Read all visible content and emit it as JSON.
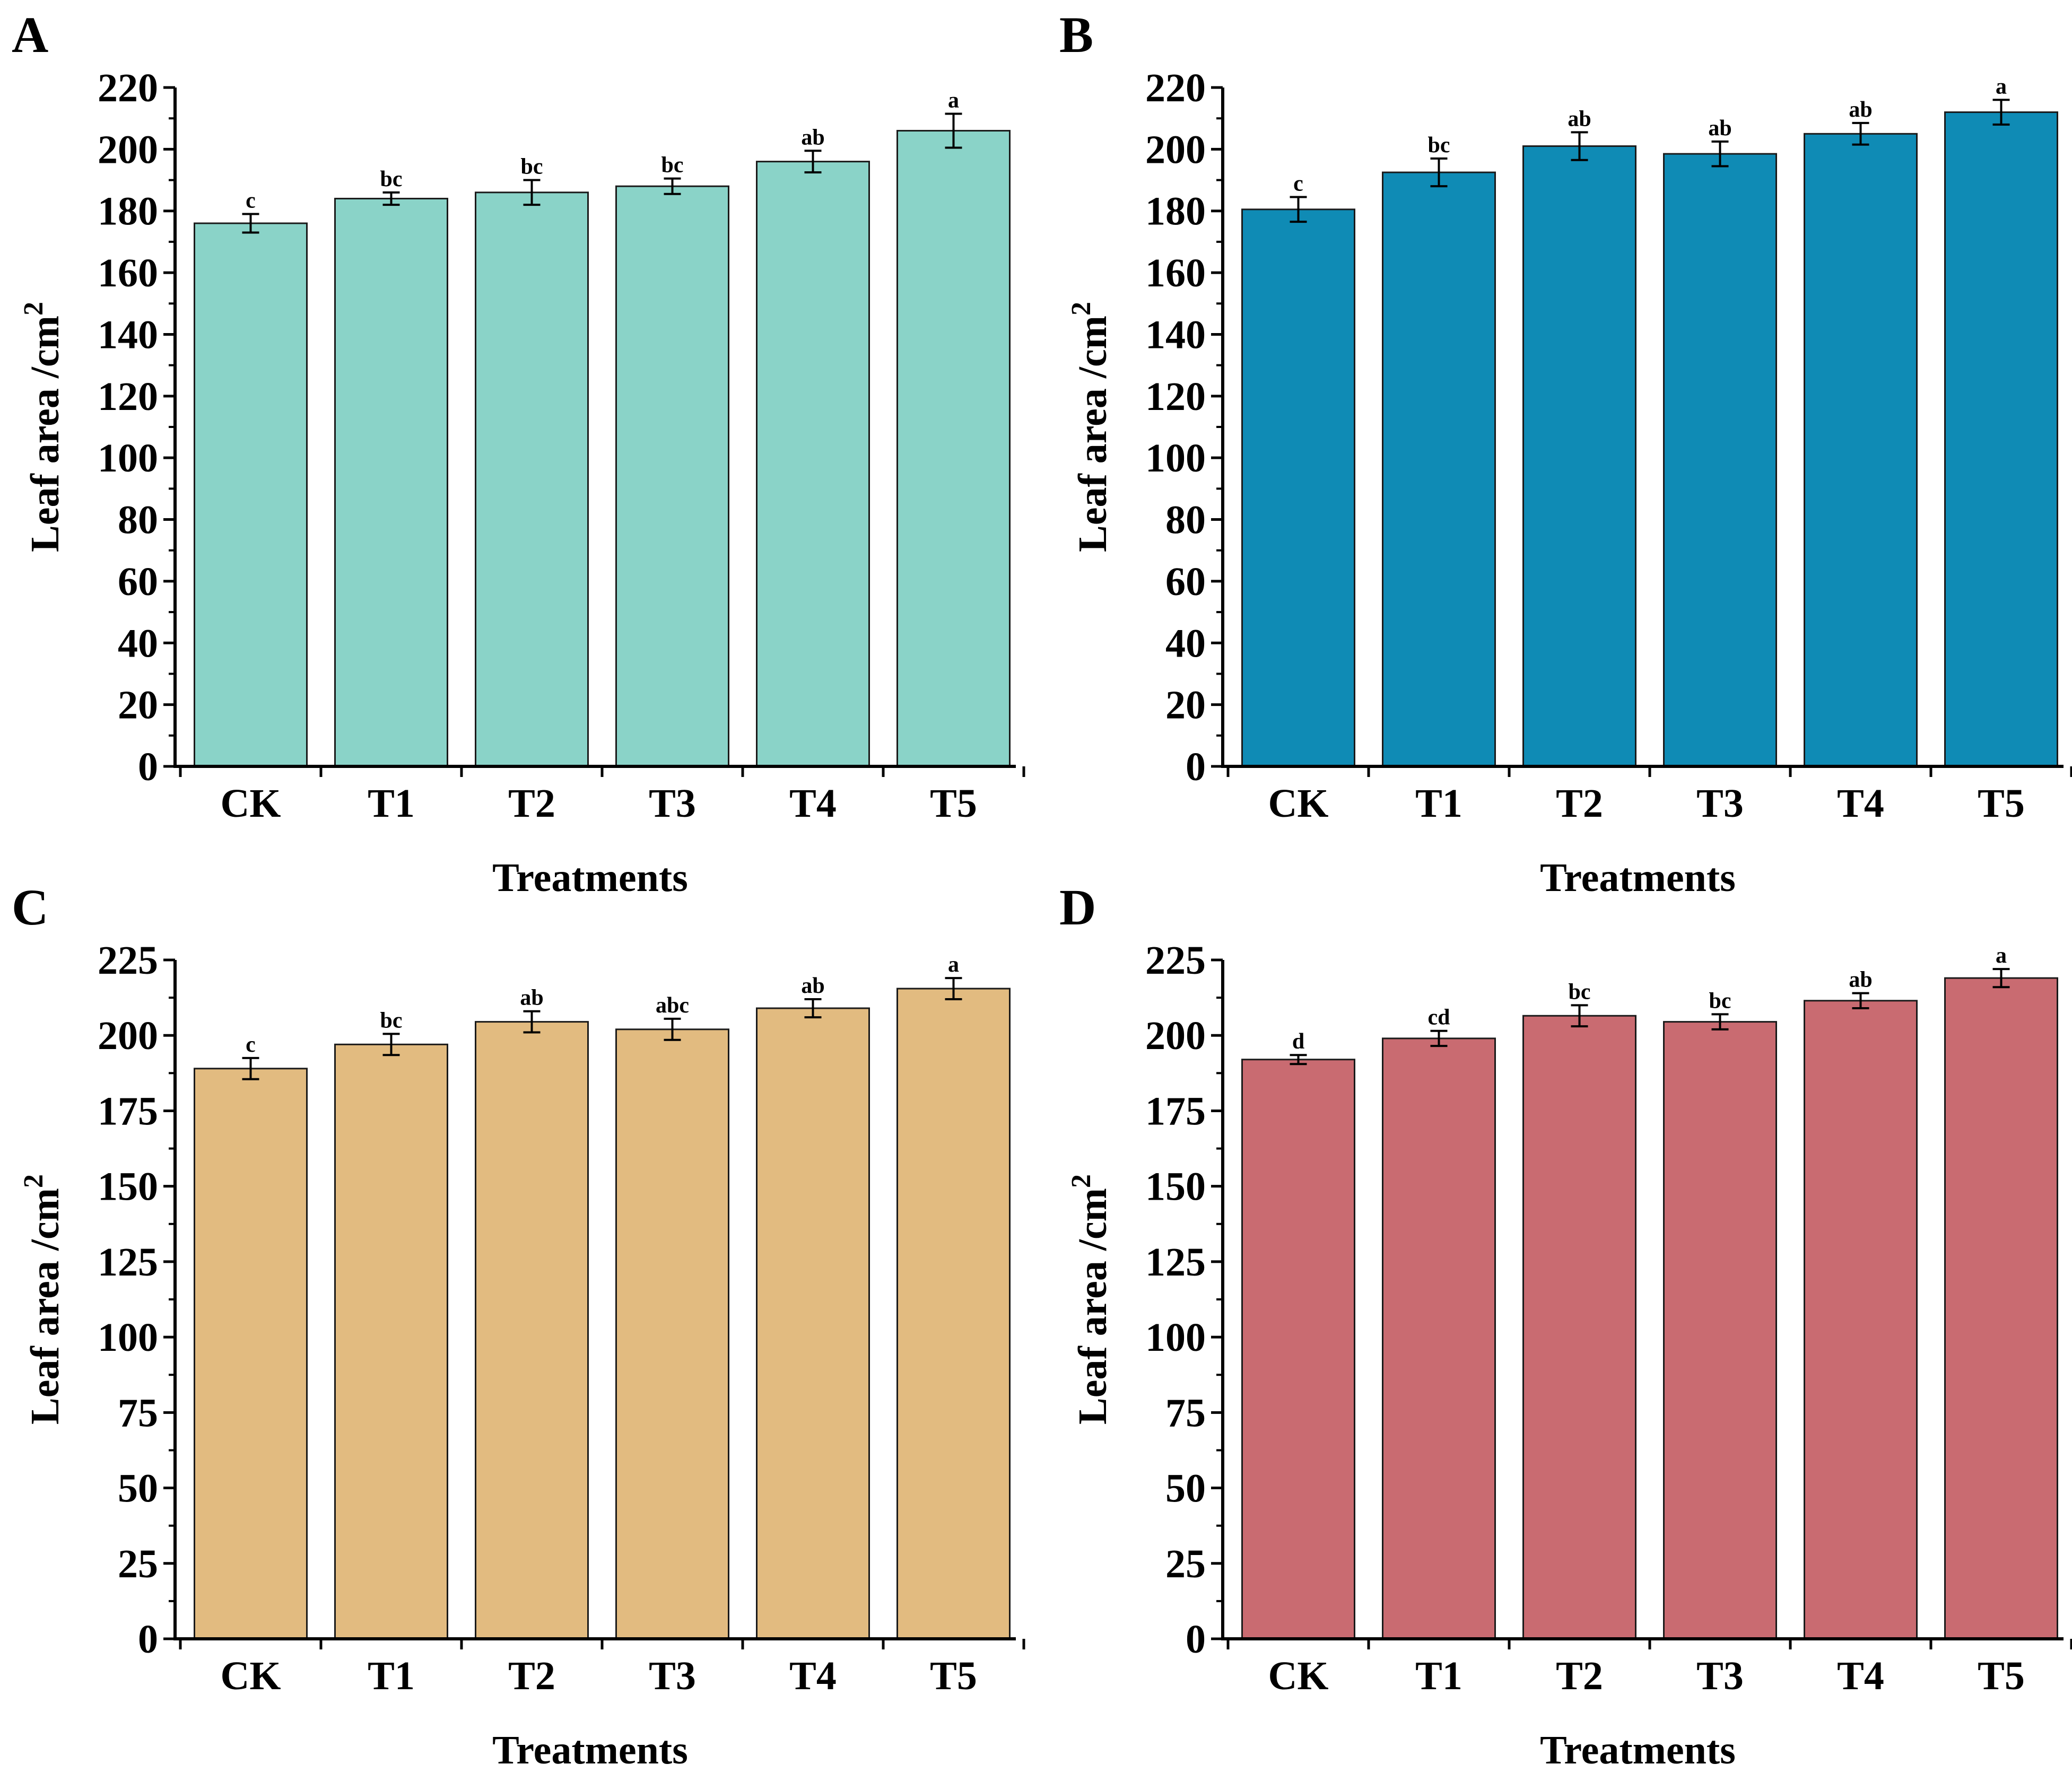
{
  "chart_data": [
    {
      "type": "bar",
      "panel": "A",
      "color": "#8ad3c8",
      "categories": [
        "CK",
        "T1",
        "T2",
        "T3",
        "T4",
        "T5"
      ],
      "values": [
        176,
        184,
        186,
        188,
        196,
        206
      ],
      "errors": [
        3,
        2,
        4,
        2.5,
        3.5,
        5.5
      ],
      "significance": [
        "c",
        "bc",
        "bc",
        "bc",
        "ab",
        "a"
      ],
      "xlabel": "Treatments",
      "ylabel": "Leaf area /cm",
      "ylabel_superscript": "2",
      "ylim": [
        0,
        220
      ],
      "yticks": [
        0,
        20,
        40,
        60,
        80,
        100,
        120,
        140,
        160,
        180,
        200,
        220
      ],
      "yticks_text": [
        "0",
        "20",
        "40",
        "60",
        "80",
        "100",
        "120",
        "140",
        "160",
        "180",
        "200",
        "220"
      ]
    },
    {
      "type": "bar",
      "panel": "B",
      "color": "#0f8bb5",
      "categories": [
        "CK",
        "T1",
        "T2",
        "T3",
        "T4",
        "T5"
      ],
      "values": [
        180.5,
        192.5,
        201,
        198.5,
        205,
        212
      ],
      "errors": [
        4,
        4.5,
        4.5,
        4,
        3.5,
        4
      ],
      "significance": [
        "c",
        "bc",
        "ab",
        "ab",
        "ab",
        "a"
      ],
      "xlabel": "Treatments",
      "ylabel": "Leaf area /cm",
      "ylabel_superscript": "2",
      "ylim": [
        0,
        220
      ],
      "yticks": [
        0,
        20,
        40,
        60,
        80,
        100,
        120,
        140,
        160,
        180,
        200,
        220
      ],
      "yticks_text": [
        "0",
        "20",
        "40",
        "60",
        "80",
        "100",
        "120",
        "140",
        "160",
        "180",
        "200",
        "220"
      ]
    },
    {
      "type": "bar",
      "panel": "C",
      "color": "#e2bb80",
      "categories": [
        "CK",
        "T1",
        "T2",
        "T3",
        "T4",
        "T5"
      ],
      "values": [
        189,
        197,
        204.5,
        202,
        209,
        215.5
      ],
      "errors": [
        3.5,
        3.5,
        3.5,
        3.5,
        3,
        3.5
      ],
      "significance": [
        "c",
        "bc",
        "ab",
        "abc",
        "ab",
        "a"
      ],
      "xlabel": "Treatments",
      "ylabel": "Leaf area /cm",
      "ylabel_superscript": "2",
      "ylim": [
        0,
        225
      ],
      "yticks": [
        0,
        25,
        50,
        75,
        100,
        125,
        150,
        175,
        200,
        225
      ],
      "yticks_text": [
        "0",
        "25",
        "50",
        "75",
        "100",
        "125",
        "150",
        "175",
        "200",
        "225"
      ]
    },
    {
      "type": "bar",
      "panel": "D",
      "color": "#c96b71",
      "categories": [
        "CK",
        "T1",
        "T2",
        "T3",
        "T4",
        "T5"
      ],
      "values": [
        192,
        199,
        206.5,
        204.5,
        211.5,
        219
      ],
      "errors": [
        1.5,
        2.5,
        3.5,
        2.5,
        2.5,
        3
      ],
      "significance": [
        "d",
        "cd",
        "bc",
        "bc",
        "ab",
        "a"
      ],
      "xlabel": "Treatments",
      "ylabel": "Leaf area /cm",
      "ylabel_superscript": "2",
      "ylim": [
        0,
        225
      ],
      "yticks": [
        0,
        25,
        50,
        75,
        100,
        125,
        150,
        175,
        200,
        225
      ],
      "yticks_text": [
        "0",
        "25",
        "50",
        "75",
        "100",
        "125",
        "150",
        "175",
        "200",
        "225"
      ]
    }
  ]
}
